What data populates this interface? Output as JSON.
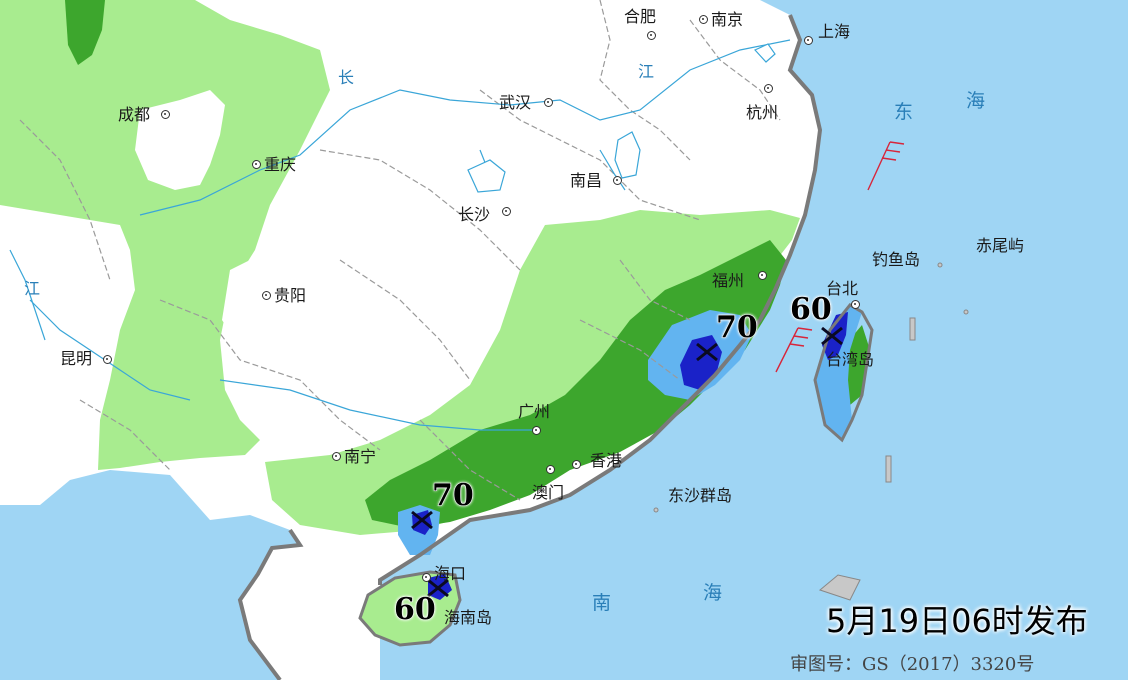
{
  "release_time": "5月19日06时发布",
  "approval_number": "审图号：GS（2017）3320号",
  "colors": {
    "sea": "#9fd5f4",
    "land": "#ffffff",
    "light_green": "#a8ec8f",
    "dark_green": "#3da62d",
    "light_blue": "#62b4f0",
    "dark_blue": "#1a22c8",
    "wind_barb": "#d8253a"
  },
  "cities": [
    {
      "id": "hefei",
      "name": "合肥"
    },
    {
      "id": "nanjing",
      "name": "南京"
    },
    {
      "id": "shanghai",
      "name": "上海"
    },
    {
      "id": "hangzhou",
      "name": "杭州"
    },
    {
      "id": "wuhan",
      "name": "武汉"
    },
    {
      "id": "chengdu",
      "name": "成都"
    },
    {
      "id": "chongqing",
      "name": "重庆"
    },
    {
      "id": "nanchang",
      "name": "南昌"
    },
    {
      "id": "changsha",
      "name": "长沙"
    },
    {
      "id": "guiyang",
      "name": "贵阳"
    },
    {
      "id": "kunming",
      "name": "昆明"
    },
    {
      "id": "fuzhou",
      "name": "福州"
    },
    {
      "id": "taipei",
      "name": "台北"
    },
    {
      "id": "guangzhou",
      "name": "广州"
    },
    {
      "id": "nanning",
      "name": "南宁"
    },
    {
      "id": "hongkong",
      "name": "香港"
    },
    {
      "id": "macau",
      "name": "澳门"
    },
    {
      "id": "haikou",
      "name": "海口"
    }
  ],
  "seas": {
    "donghai_1": "东",
    "donghai_2": "海",
    "nanhai_1": "南",
    "nanhai_2": "海",
    "changjiang_1": "长",
    "changjiang_2": "江",
    "changjiang_3": "江"
  },
  "islands": {
    "diaoyu": "钓鱼岛",
    "chiwei": "赤尾屿",
    "taiwan": "台湾岛",
    "hainan": "海南岛",
    "dongsha": "东沙群岛"
  },
  "rain_maxima": [
    {
      "id": "fujian",
      "value": "70"
    },
    {
      "id": "taiwan",
      "value": "60"
    },
    {
      "id": "leizhou",
      "value": "70"
    },
    {
      "id": "hainan",
      "value": "60"
    }
  ]
}
